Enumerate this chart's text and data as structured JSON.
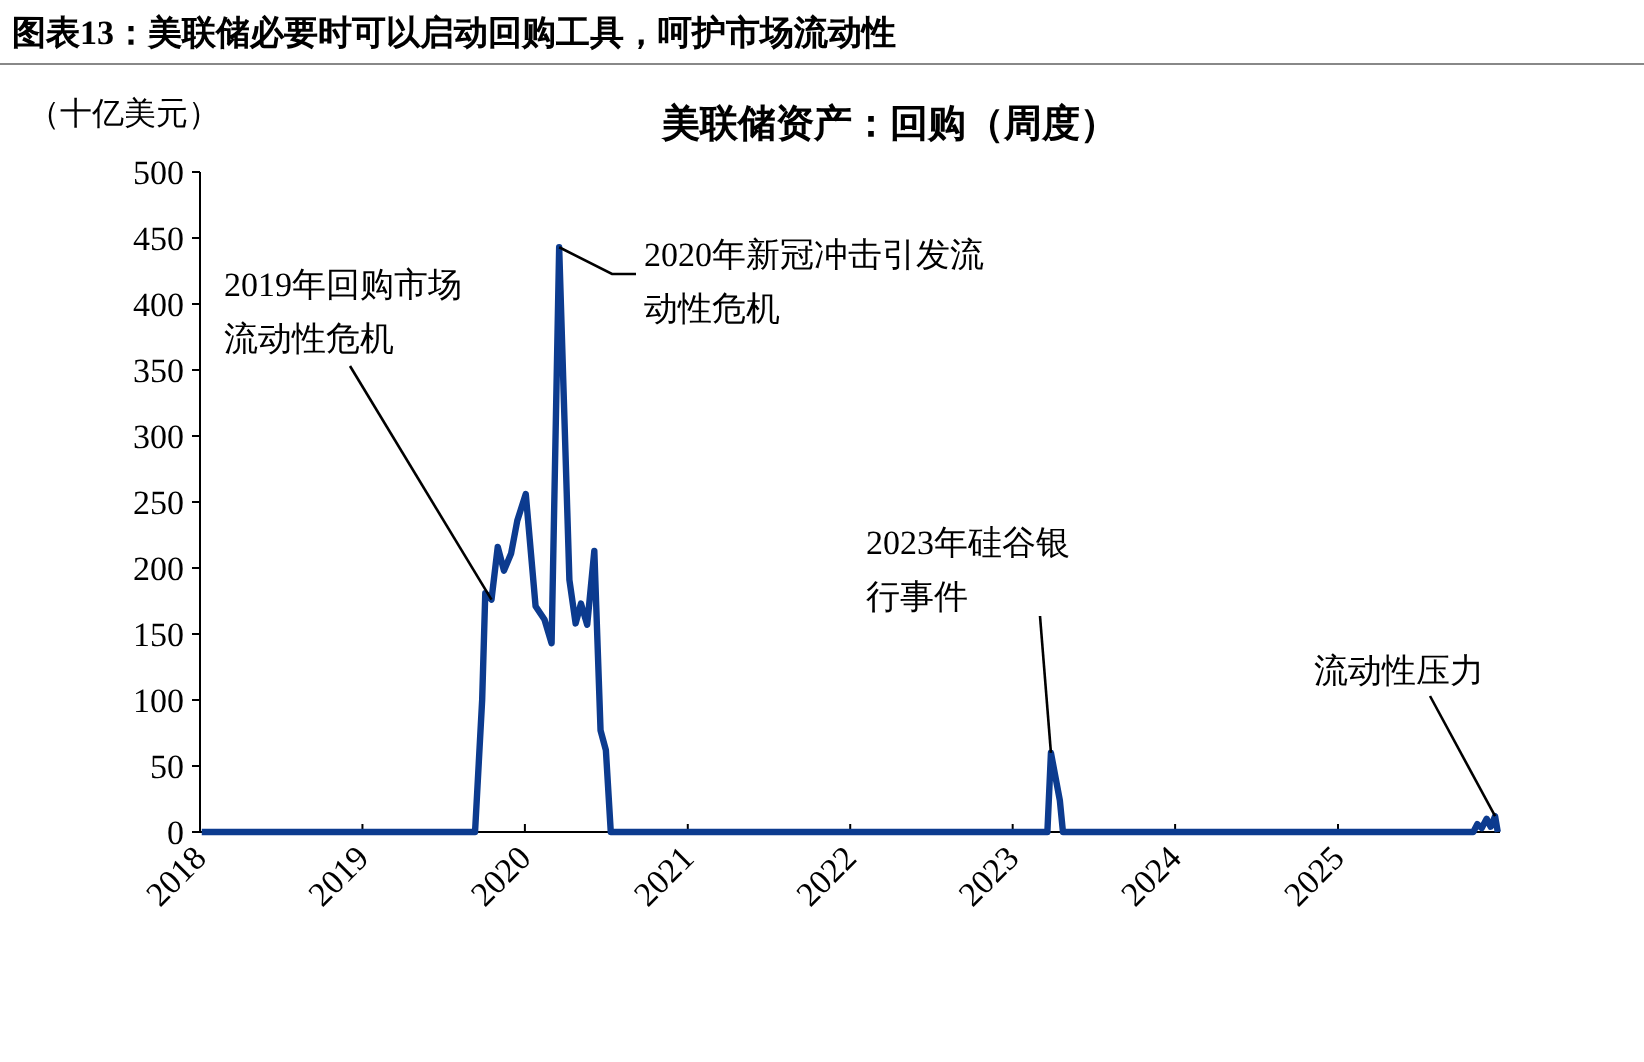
{
  "chart_data": {
    "type": "line",
    "title": "图表13：美联储必要时可以启动回购工具，呵护市场流动性",
    "subtitle": "美联储资产：回购（周度）",
    "ylabel": "（十亿美元）",
    "x": [
      "2018-01-05",
      "2019-09-11",
      "2019-09-27",
      "2019-10-04",
      "2019-10-18",
      "2019-11-01",
      "2019-11-15",
      "2019-12-01",
      "2019-12-15",
      "2020-01-03",
      "2020-01-10",
      "2020-01-25",
      "2020-02-14",
      "2020-03-01",
      "2020-03-18",
      "2020-04-10",
      "2020-04-24",
      "2020-05-06",
      "2020-05-20",
      "2020-06-05",
      "2020-06-19",
      "2020-07-01",
      "2020-07-12",
      "2023-03-20",
      "2023-03-28",
      "2023-04-17",
      "2023-04-24",
      "2025-11-01",
      "2025-11-10",
      "2025-11-20",
      "2025-12-01",
      "2025-12-10",
      "2025-12-20",
      "2025-12-26"
    ],
    "series": [
      {
        "color": "#0c3b8f",
        "values": [
          0,
          0,
          100,
          181,
          176,
          216,
          198,
          211,
          236,
          256,
          229,
          171,
          161,
          143,
          443,
          191,
          158,
          173,
          157,
          213,
          77,
          62,
          0,
          0,
          60,
          24,
          0,
          0,
          6,
          3,
          10,
          4,
          12,
          0
        ]
      }
    ],
    "xlim": [
      "2018-01-01",
      "2025-12-31"
    ],
    "xticks": [
      {
        "value": "2018-01-01",
        "label": "2018"
      },
      {
        "value": "2019-01-01",
        "label": "2019"
      },
      {
        "value": "2020-01-01",
        "label": "2020"
      },
      {
        "value": "2021-01-01",
        "label": "2021"
      },
      {
        "value": "2022-01-01",
        "label": "2022"
      },
      {
        "value": "2023-01-01",
        "label": "2023"
      },
      {
        "value": "2024-01-01",
        "label": "2024"
      },
      {
        "value": "2025-01-01",
        "label": "2025"
      }
    ],
    "ylim": [
      0,
      500
    ],
    "yticks": [
      0,
      50,
      100,
      150,
      200,
      250,
      300,
      350,
      400,
      450,
      500
    ],
    "annotations": [
      {
        "text": "2019年回购市场流动性危机",
        "x": "2019-10-18",
        "y": 176
      },
      {
        "text": "2020年新冠冲击引发流动性危机",
        "x": "2020-03-18",
        "y": 443
      },
      {
        "text": "2023年硅谷银行事件",
        "x": "2023-03-28",
        "y": 60
      },
      {
        "text": "流动性压力",
        "x": "2025-12-20",
        "y": 12
      }
    ]
  }
}
